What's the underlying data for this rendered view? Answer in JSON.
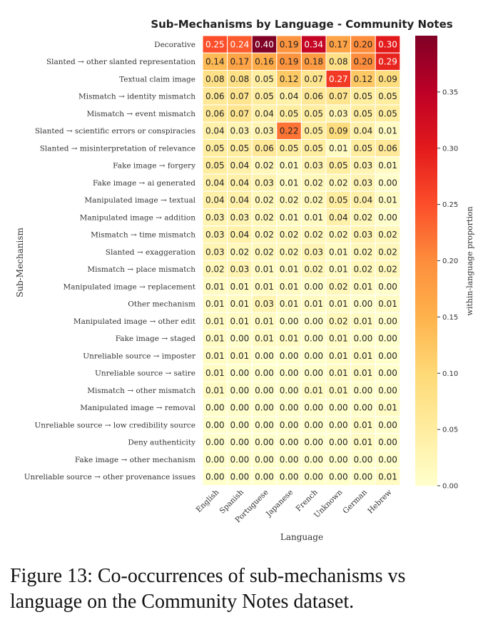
{
  "chart_data": {
    "type": "heatmap",
    "title": "Sub-Mechanisms by Language - Community Notes",
    "xlabel": "Language",
    "ylabel": "Sub-Mechanism",
    "x": [
      "English",
      "Spanish",
      "Portuguese",
      "Japanese",
      "French",
      "Unknown",
      "German",
      "Hebrew"
    ],
    "y": [
      "Decorative",
      "Slanted → other slanted representation",
      "Textual claim image",
      "Mismatch → identity mismatch",
      "Mismatch → event mismatch",
      "Slanted → scientific errors or conspiracies",
      "Slanted → misinterpretation of relevance",
      "Fake image → forgery",
      "Fake image → ai generated",
      "Manipulated image → textual",
      "Manipulated image → addition",
      "Mismatch → time mismatch",
      "Slanted → exaggeration",
      "Mismatch → place mismatch",
      "Manipulated image → replacement",
      "Other mechanism",
      "Manipulated image → other edit",
      "Fake image → staged",
      "Unreliable source → imposter",
      "Unreliable source → satire",
      "Mismatch → other mismatch",
      "Manipulated image → removal",
      "Unreliable source → low credibility source",
      "Deny authenticity",
      "Fake image → other mechanism",
      "Unreliable source → other provenance issues"
    ],
    "values": [
      [
        0.25,
        0.24,
        0.4,
        0.19,
        0.34,
        0.17,
        0.2,
        0.3
      ],
      [
        0.14,
        0.17,
        0.16,
        0.19,
        0.18,
        0.08,
        0.2,
        0.29
      ],
      [
        0.08,
        0.08,
        0.05,
        0.12,
        0.07,
        0.27,
        0.12,
        0.09
      ],
      [
        0.06,
        0.07,
        0.05,
        0.04,
        0.06,
        0.07,
        0.05,
        0.05
      ],
      [
        0.06,
        0.07,
        0.04,
        0.05,
        0.05,
        0.03,
        0.05,
        0.05
      ],
      [
        0.04,
        0.03,
        0.03,
        0.22,
        0.05,
        0.09,
        0.04,
        0.01
      ],
      [
        0.05,
        0.05,
        0.06,
        0.05,
        0.05,
        0.01,
        0.05,
        0.06
      ],
      [
        0.05,
        0.04,
        0.02,
        0.01,
        0.03,
        0.05,
        0.03,
        0.01
      ],
      [
        0.04,
        0.04,
        0.03,
        0.01,
        0.02,
        0.02,
        0.03,
        0.0
      ],
      [
        0.04,
        0.04,
        0.02,
        0.02,
        0.02,
        0.05,
        0.04,
        0.01
      ],
      [
        0.03,
        0.03,
        0.02,
        0.01,
        0.01,
        0.04,
        0.02,
        0.0
      ],
      [
        0.03,
        0.04,
        0.02,
        0.02,
        0.02,
        0.02,
        0.03,
        0.02
      ],
      [
        0.03,
        0.02,
        0.02,
        0.02,
        0.03,
        0.01,
        0.02,
        0.02
      ],
      [
        0.02,
        0.03,
        0.01,
        0.01,
        0.02,
        0.01,
        0.02,
        0.02
      ],
      [
        0.01,
        0.01,
        0.01,
        0.01,
        0.0,
        0.02,
        0.01,
        0.0
      ],
      [
        0.01,
        0.01,
        0.03,
        0.01,
        0.01,
        0.01,
        0.0,
        0.01
      ],
      [
        0.01,
        0.01,
        0.01,
        0.0,
        0.0,
        0.02,
        0.01,
        0.0
      ],
      [
        0.01,
        0.0,
        0.01,
        0.01,
        0.0,
        0.01,
        0.0,
        0.0
      ],
      [
        0.01,
        0.01,
        0.0,
        0.0,
        0.0,
        0.01,
        0.01,
        0.0
      ],
      [
        0.01,
        0.0,
        0.0,
        0.0,
        0.0,
        0.01,
        0.01,
        0.0
      ],
      [
        0.01,
        0.0,
        0.0,
        0.0,
        0.01,
        0.01,
        0.0,
        0.0
      ],
      [
        0.0,
        0.0,
        0.0,
        0.0,
        0.0,
        0.0,
        0.0,
        0.01
      ],
      [
        0.0,
        0.0,
        0.0,
        0.0,
        0.0,
        0.0,
        0.01,
        0.0
      ],
      [
        0.0,
        0.0,
        0.0,
        0.0,
        0.0,
        0.0,
        0.01,
        0.0
      ],
      [
        0.0,
        0.0,
        0.0,
        0.0,
        0.0,
        0.0,
        0.0,
        0.0
      ],
      [
        0.0,
        0.0,
        0.0,
        0.0,
        0.0,
        0.0,
        0.0,
        0.01
      ]
    ],
    "colorbar": {
      "label": "within-language proportion",
      "range": [
        0.0,
        0.4
      ],
      "ticks": [
        "0.00",
        "0.05",
        "0.10",
        "0.15",
        "0.20",
        "0.25",
        "0.30",
        "0.35"
      ],
      "colormap": "YlOrRd"
    },
    "grid": false
  },
  "caption": "Figure 13: Co-occurrences of sub-mechanisms vs language on the Community Notes dataset."
}
